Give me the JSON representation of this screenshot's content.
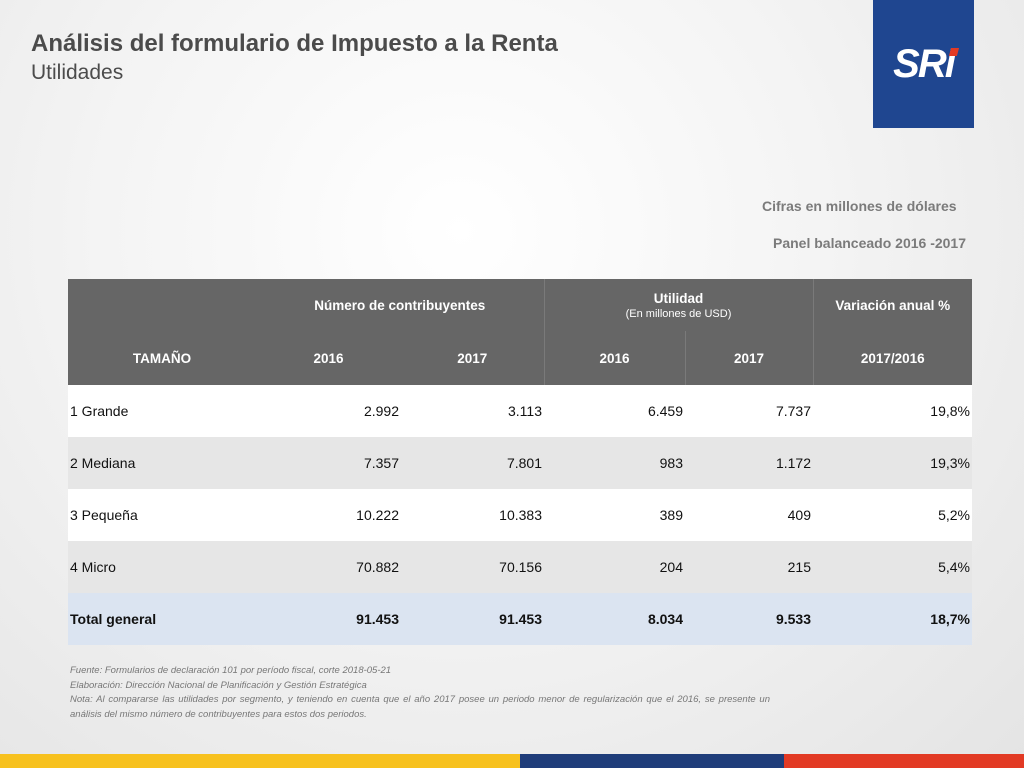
{
  "header": {
    "title": "Análisis del formulario de Impuesto a la Renta",
    "subtitle": "Utilidades"
  },
  "logo": {
    "text": "SRi",
    "background": "#1f4690",
    "accent": "#e23a24"
  },
  "notes": {
    "units": "Cifras en millones de dólares",
    "panel": "Panel balanceado 2016 -2017"
  },
  "table": {
    "group_headers": {
      "contribuyentes": "Número de contribuyentes",
      "utilidad": "Utilidad",
      "utilidad_sub": "(En millones de USD)",
      "variacion": "Variación anual %"
    },
    "columns": [
      "TAMAÑO",
      "2016",
      "2017",
      "2016",
      "2017",
      "2017/2016"
    ],
    "rows": [
      {
        "tamano": "1 Grande",
        "c2016": "2.992",
        "c2017": "3.113",
        "u2016": "6.459",
        "u2017": "7.737",
        "var": "19,8%"
      },
      {
        "tamano": "2 Mediana",
        "c2016": "7.357",
        "c2017": "7.801",
        "u2016": "983",
        "u2017": "1.172",
        "var": "19,3%"
      },
      {
        "tamano": "3 Pequeña",
        "c2016": "10.222",
        "c2017": "10.383",
        "u2016": "389",
        "u2017": "409",
        "var": "5,2%"
      },
      {
        "tamano": "4 Micro",
        "c2016": "70.882",
        "c2017": "70.156",
        "u2016": "204",
        "u2017": "215",
        "var": "5,4%"
      }
    ],
    "total": {
      "tamano": "Total general",
      "c2016": "91.453",
      "c2017": "91.453",
      "u2016": "8.034",
      "u2017": "9.533",
      "var": "18,7%"
    }
  },
  "footer": {
    "fuente": "Fuente: Formularios de declaración 101 por período fiscal, corte 2018-05-21",
    "elaboracion": "Elaboración: Dirección Nacional de Planificación y Gestión Estratégica",
    "nota": "Nota: Al compararse las utilidades por segmento, y teniendo en cuenta que el año 2017 posee un periodo menor de regularización que el 2016, se presente un análisis del mismo número de contribuyentes para estos dos periodos."
  },
  "colors": {
    "header_bg": "#666666",
    "total_bg": "#dbe4f1",
    "bar_yellow": "#f7c11e",
    "bar_navy": "#1f3d7a",
    "bar_red": "#e23a24"
  }
}
